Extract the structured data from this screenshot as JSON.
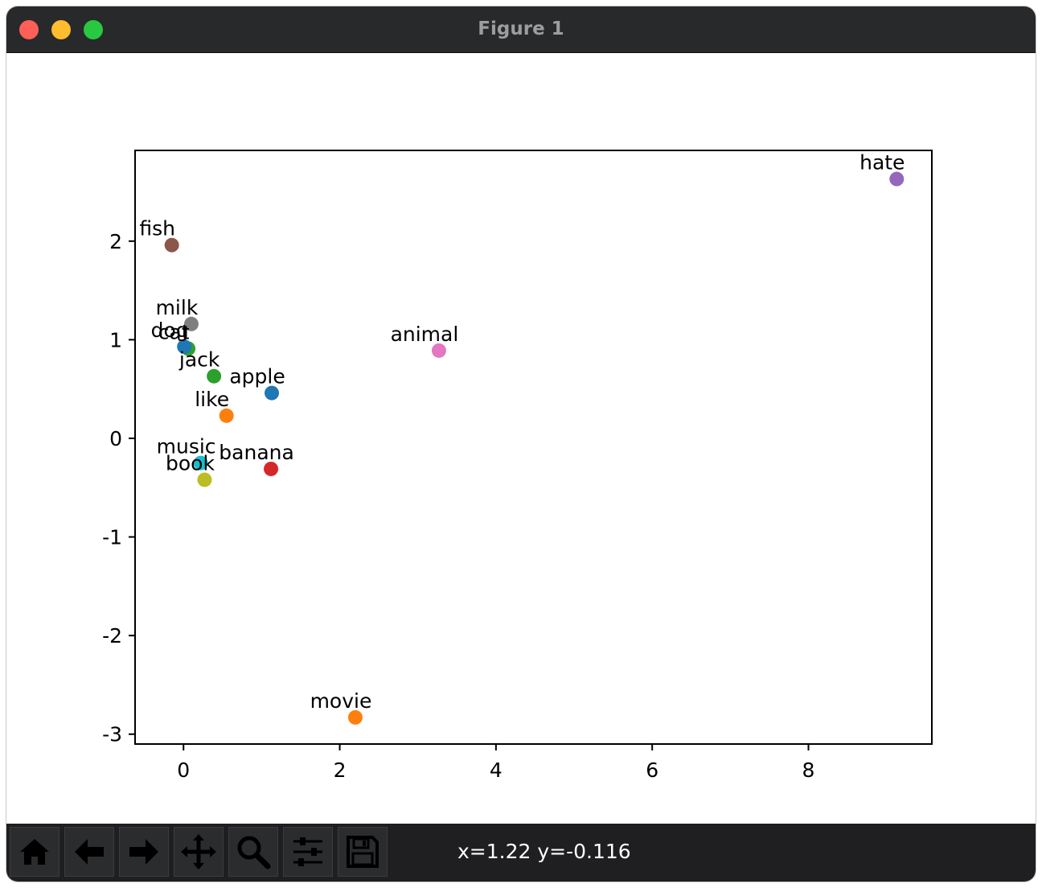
{
  "window": {
    "title": "Figure 1",
    "controls": [
      "close",
      "minimize",
      "maximize"
    ],
    "colors": {
      "close": "#fe5f57",
      "minimize": "#febc2e",
      "maximize": "#28c840"
    }
  },
  "toolbar": {
    "buttons": [
      {
        "id": "home",
        "icon": "home-icon"
      },
      {
        "id": "back",
        "icon": "arrow-left-icon"
      },
      {
        "id": "forward",
        "icon": "arrow-right-icon"
      },
      {
        "id": "pan",
        "icon": "move-icon"
      },
      {
        "id": "zoom",
        "icon": "magnifier-icon"
      },
      {
        "id": "subplots",
        "icon": "sliders-icon"
      },
      {
        "id": "save",
        "icon": "floppy-icon"
      }
    ],
    "coords": "x=1.22 y=-0.116"
  },
  "chart_data": {
    "type": "scatter",
    "title": "",
    "xlabel": "",
    "ylabel": "",
    "xlim": [
      -0.62,
      9.58
    ],
    "ylim": [
      -3.1,
      2.92
    ],
    "xticks": [
      0,
      2,
      4,
      6,
      8
    ],
    "xtick_labels": [
      "0",
      "2",
      "4",
      "6",
      "8"
    ],
    "yticks": [
      2,
      1,
      0,
      -1,
      -2,
      -3
    ],
    "ytick_labels": [
      "2",
      "1",
      "0",
      "-1",
      "-2",
      "-3"
    ],
    "grid": false,
    "legend": "none",
    "points": [
      {
        "label": "hate",
        "x": 9.13,
        "y": 2.63,
        "color": "#9467bd"
      },
      {
        "label": "fish",
        "x": -0.15,
        "y": 1.96,
        "color": "#8c564b"
      },
      {
        "label": "milk",
        "x": 0.1,
        "y": 1.16,
        "color": "#7f7f7f"
      },
      {
        "label": "cat",
        "x": 0.06,
        "y": 0.91,
        "color": "#2ca02c"
      },
      {
        "label": "dog",
        "x": 0.01,
        "y": 0.93,
        "color": "#1f77b4"
      },
      {
        "label": "animal",
        "x": 3.27,
        "y": 0.89,
        "color": "#e377c2"
      },
      {
        "label": "jack",
        "x": 0.39,
        "y": 0.63,
        "color": "#2ca02c"
      },
      {
        "label": "apple",
        "x": 1.13,
        "y": 0.46,
        "color": "#1f77b4"
      },
      {
        "label": "like",
        "x": 0.55,
        "y": 0.23,
        "color": "#ff7f0e"
      },
      {
        "label": "music",
        "x": 0.22,
        "y": -0.25,
        "color": "#17becf"
      },
      {
        "label": "banana",
        "x": 1.12,
        "y": -0.31,
        "color": "#d62728"
      },
      {
        "label": "book",
        "x": 0.27,
        "y": -0.42,
        "color": "#bcbd22"
      },
      {
        "label": "movie",
        "x": 2.2,
        "y": -2.83,
        "color": "#ff7f0e"
      }
    ]
  }
}
